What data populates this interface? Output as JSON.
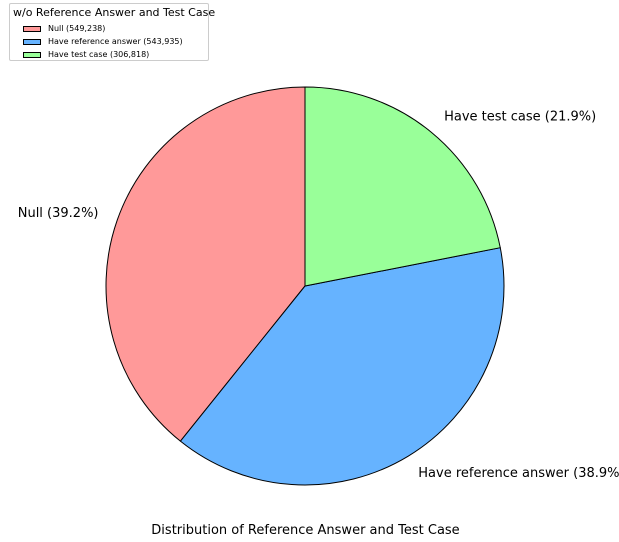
{
  "chart_data": {
    "type": "pie",
    "title": "",
    "xlabel": "Distribution of Reference Answer and Test Case",
    "legend": {
      "title": "w/o Reference Answer and Test Case",
      "placement": "top-left",
      "entries": [
        "Null (549,238)",
        "Have reference answer (543,935)",
        "Have test case (306,818)"
      ]
    },
    "categories": [
      "Null",
      "Have reference answer",
      "Have test case"
    ],
    "values": [
      549238,
      543935,
      306818
    ],
    "labels": [
      "Null (39.2%)",
      "Have reference answer (38.9%)",
      "Have test case (21.9%)"
    ],
    "colors": [
      "#ff9999",
      "#66b3ff",
      "#99ff99"
    ],
    "start_angle_deg": 90,
    "direction": "counterclockwise"
  }
}
